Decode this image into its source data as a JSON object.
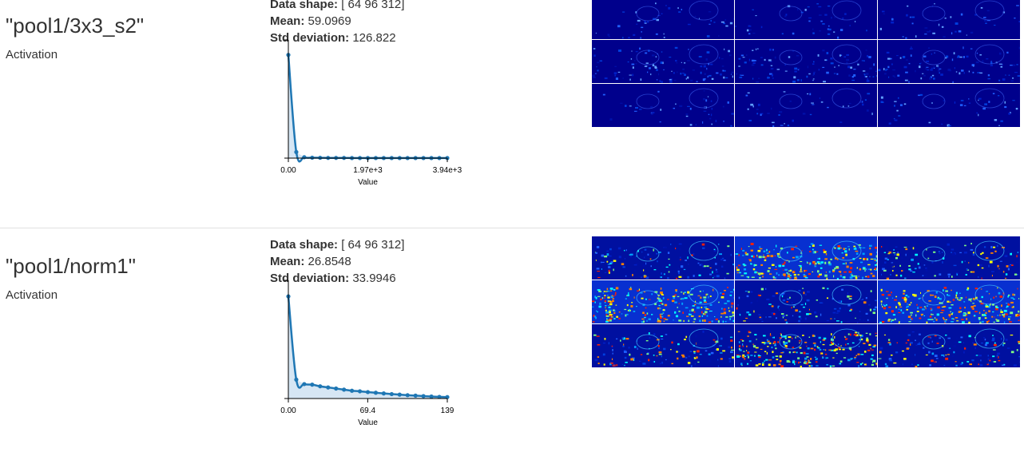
{
  "layers": [
    {
      "name": "\"pool1/3x3_s2\"",
      "type": "Activation",
      "stats": {
        "shape_label": "Data shape:",
        "shape_value": "[ 64 96 312]",
        "mean_label": "Mean:",
        "mean_value": "59.0969",
        "std_label": "Std deviation:",
        "std_value": "126.822"
      },
      "visualization_style": "dark",
      "chart_data": {
        "type": "area",
        "title": "",
        "xlabel": "Value",
        "ylabel": "",
        "xlim": [
          0,
          3940
        ],
        "ylim": [
          0,
          1
        ],
        "x_tick_labels": [
          "0.00",
          "1.97e+3",
          "3.94e+3"
        ],
        "x_tick_values": [
          0,
          1970,
          3940
        ],
        "series": [
          {
            "name": "histogram",
            "x": [
              0,
              197,
              394,
              591,
              788,
              985,
              1182,
              1379,
              1576,
              1773,
              1970,
              2167,
              2364,
              2561,
              2758,
              2955,
              3152,
              3349,
              3546,
              3743,
              3940
            ],
            "values": [
              0.93,
              0.055,
              0.008,
              0.004,
              0.003,
              0.002,
              0.002,
              0.002,
              0.001,
              0.001,
              0.001,
              0.001,
              0.001,
              0.001,
              0.001,
              0.001,
              0.001,
              0.001,
              0.001,
              0.001,
              0.001
            ]
          }
        ]
      }
    },
    {
      "name": "\"pool1/norm1\"",
      "type": "Activation",
      "stats": {
        "shape_label": "Data shape:",
        "shape_value": "[ 64 96 312]",
        "mean_label": "Mean:",
        "mean_value": "26.8548",
        "std_label": "Std deviation:",
        "std_value": "33.9946"
      },
      "visualization_style": "bright",
      "chart_data": {
        "type": "area",
        "title": "",
        "xlabel": "Value",
        "ylabel": "",
        "xlim": [
          0,
          139
        ],
        "ylim": [
          0,
          1
        ],
        "x_tick_labels": [
          "0.00",
          "69.4",
          "139"
        ],
        "x_tick_values": [
          0,
          69.4,
          139
        ],
        "series": [
          {
            "name": "histogram",
            "x": [
              0,
              6.95,
              13.9,
              20.85,
              27.8,
              34.75,
              41.7,
              48.65,
              55.6,
              62.55,
              69.5,
              76.45,
              83.4,
              90.35,
              97.3,
              104.25,
              111.2,
              118.15,
              125.1,
              132.05,
              139
            ],
            "values": [
              0.92,
              0.17,
              0.13,
              0.125,
              0.11,
              0.1,
              0.09,
              0.08,
              0.07,
              0.065,
              0.058,
              0.052,
              0.046,
              0.04,
              0.035,
              0.03,
              0.026,
              0.022,
              0.018,
              0.015,
              0.013
            ]
          }
        ]
      }
    }
  ]
}
